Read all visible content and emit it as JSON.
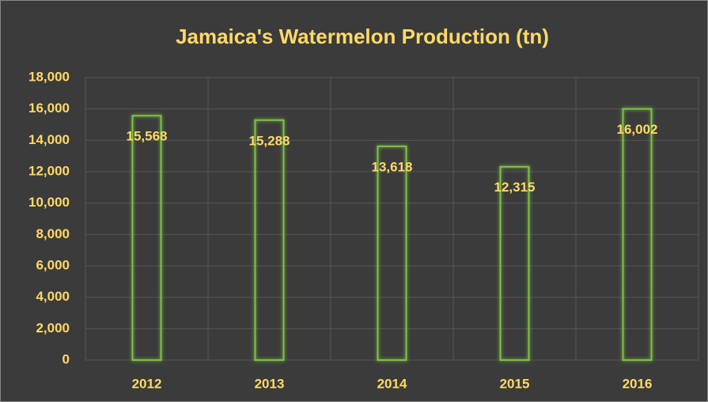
{
  "chart_data": {
    "type": "bar",
    "title": "Jamaica's Watermelon Production (tn)",
    "categories": [
      "2012",
      "2013",
      "2014",
      "2015",
      "2016"
    ],
    "values": [
      15568,
      15288,
      13618,
      12315,
      16002
    ],
    "value_labels": [
      "15,568",
      "15,288",
      "13,618",
      "12,315",
      "16,002"
    ],
    "color": "#7dc242",
    "ylim": [
      0,
      18000
    ],
    "yticks": [
      0,
      {
        "value": 2000,
        "label": "2,000"
      },
      {
        "value": 4000,
        "label": "4,000"
      },
      {
        "value": 6000,
        "label": "6,000"
      },
      {
        "value": 8000,
        "label": "8,000"
      },
      {
        "value": 10000,
        "label": "10,000"
      },
      {
        "value": 12000,
        "label": "12,000"
      },
      {
        "value": 14000,
        "label": "14,000"
      },
      {
        "value": 16000,
        "label": "16,000"
      },
      {
        "value": 18000,
        "label": "18,000"
      }
    ],
    "grid": true
  }
}
